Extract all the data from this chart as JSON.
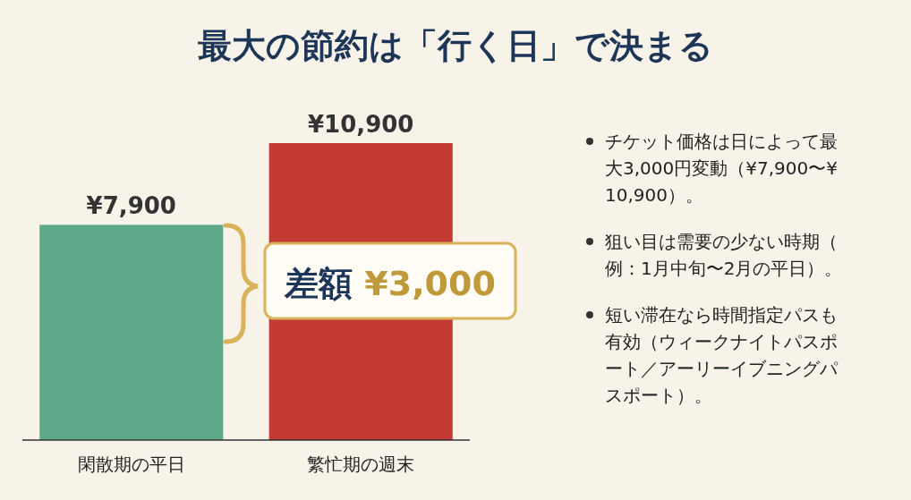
{
  "chart_data": {
    "type": "bar",
    "title": "最大の節約は「行く日」で決まる",
    "categories": [
      "閑散期の平日",
      "繁忙期の週末"
    ],
    "values": [
      7900,
      10900
    ],
    "colors": [
      "#5fa88a",
      "#c43a35"
    ],
    "value_labels": [
      "¥7,900",
      "¥10,900"
    ],
    "annotations": [
      "差額 ¥3,000",
      "チケット価格は日によって最大3,000円変動（¥7,900〜¥10,900）。",
      "狙い目は需要の少ない時期（例：1月中旬〜2月の平日）。",
      "短い滞在なら時間指定パスも有効（ウィークナイトパスポート／アーリーイブニングパスポート）。"
    ]
  }
}
